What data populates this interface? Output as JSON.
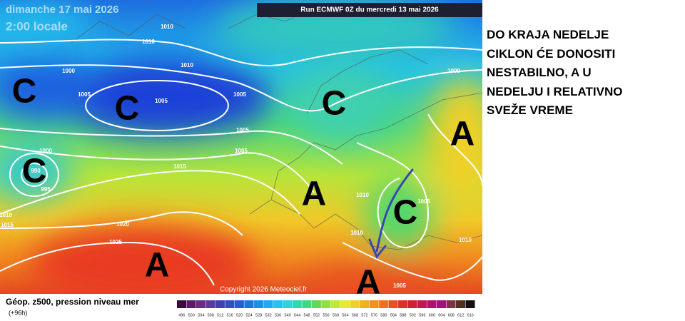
{
  "map": {
    "date": "dimanche 17 mai 2026",
    "time": "2:00 locale",
    "run": "Run ECMWF 0Z du mercredi 13 mai 2026",
    "copyright": "Copyright 2026 Meteociel.fr",
    "isobar_labels": [
      1010,
      1010,
      1010,
      1000,
      1005,
      1005,
      1005,
      1005,
      1005,
      1000,
      990,
      995,
      1015,
      1010,
      1015,
      1020,
      1025,
      1000,
      1010,
      1010,
      1005,
      1010,
      1005
    ],
    "systems": [
      "C",
      "C",
      "C",
      "C",
      "C",
      "A",
      "A",
      "A",
      "A"
    ]
  },
  "legend": {
    "title": "Géop. z500, pression niveau mer",
    "lead": "(+96h)",
    "scale": [
      496,
      500,
      504,
      508,
      512,
      516,
      520,
      524,
      528,
      532,
      536,
      540,
      544,
      548,
      552,
      556,
      560,
      564,
      568,
      572,
      576,
      580,
      584,
      588,
      592,
      596,
      600,
      604,
      608,
      612,
      616
    ],
    "colors": [
      "#3a0a3e",
      "#5a1a6a",
      "#6a2a8a",
      "#5a3aa0",
      "#4040b0",
      "#3050c0",
      "#2060d0",
      "#1878e0",
      "#1890e8",
      "#20a8f0",
      "#28c0f0",
      "#30d0e0",
      "#30d8b0",
      "#40d880",
      "#60d850",
      "#90e040",
      "#c0e838",
      "#e8e830",
      "#f0d028",
      "#f0b020",
      "#f09020",
      "#f07020",
      "#e85020",
      "#e03020",
      "#d02030",
      "#c01850",
      "#b01070",
      "#a01080",
      "#803040",
      "#503020",
      "#101010"
    ]
  },
  "caption": {
    "lines": [
      "DO KRAJA NEDELJE",
      "CIKLON ĆE DONOSITI",
      "NESTABILNO, A U",
      "NEDELJU I RELATIVNO",
      "SVEŽE VREME"
    ]
  }
}
